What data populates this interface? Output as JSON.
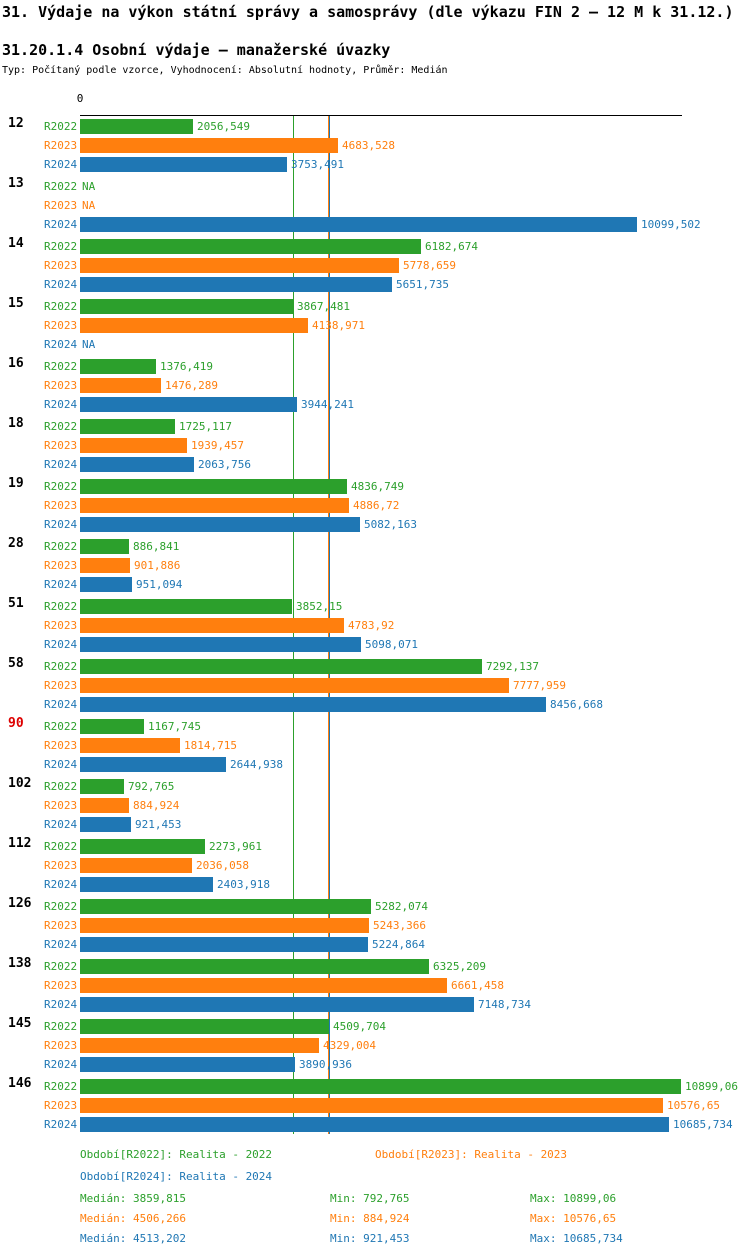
{
  "chart_data": {
    "type": "bar",
    "orientation": "horizontal",
    "title": "31. Výdaje na výkon státní správy a samosprávy (dle výkazu FIN 2 – 12 M k 31.12.)",
    "subtitle": "31.20.1.4 Osobní výdaje – manažerské úvazky",
    "meta": "Typ: Počítaný podle vzorce, Vyhodnocení: Absolutní hodnoty, Průměr: Medián",
    "axis": {
      "origin_label": "0",
      "xmax": 10899.06
    },
    "legend_position": "bottom",
    "grid": "vertical median reference lines only",
    "colors": {
      "green": "#2CA02C",
      "orange": "#FF7F0E",
      "blue": "#1F77B4",
      "red": "#DD0000",
      "black": "#000000"
    },
    "series": [
      {
        "name": "R2022",
        "color_key": "green"
      },
      {
        "name": "R2023",
        "color_key": "orange"
      },
      {
        "name": "R2024",
        "color_key": "blue"
      }
    ],
    "medians": [
      {
        "series": "R2022",
        "value": 3859.815,
        "color_key": "green"
      },
      {
        "series": "R2023",
        "value": 4506.266,
        "color_key": "orange"
      },
      {
        "series": "R2024",
        "value": 4513.202,
        "color_key": "blue"
      }
    ],
    "groups": [
      {
        "label": "12",
        "label_color": "#000000",
        "bars": [
          {
            "series": "R2022",
            "value": 2056.549,
            "display": "2056,549"
          },
          {
            "series": "R2023",
            "value": 4683.528,
            "display": "4683,528"
          },
          {
            "series": "R2024",
            "value": 3753.491,
            "display": "3753,491"
          }
        ]
      },
      {
        "label": "13",
        "label_color": "#000000",
        "bars": [
          {
            "series": "R2022",
            "value": null,
            "display": "NA"
          },
          {
            "series": "R2023",
            "value": null,
            "display": "NA"
          },
          {
            "series": "R2024",
            "value": 10099.502,
            "display": "10099,502"
          }
        ]
      },
      {
        "label": "14",
        "label_color": "#000000",
        "bars": [
          {
            "series": "R2022",
            "value": 6182.674,
            "display": "6182,674"
          },
          {
            "series": "R2023",
            "value": 5778.659,
            "display": "5778,659"
          },
          {
            "series": "R2024",
            "value": 5651.735,
            "display": "5651,735"
          }
        ]
      },
      {
        "label": "15",
        "label_color": "#000000",
        "bars": [
          {
            "series": "R2022",
            "value": 3867.481,
            "display": "3867,481"
          },
          {
            "series": "R2023",
            "value": 4138.971,
            "display": "4138,971"
          },
          {
            "series": "R2024",
            "value": null,
            "display": "NA"
          }
        ]
      },
      {
        "label": "16",
        "label_color": "#000000",
        "bars": [
          {
            "series": "R2022",
            "value": 1376.419,
            "display": "1376,419"
          },
          {
            "series": "R2023",
            "value": 1476.289,
            "display": "1476,289"
          },
          {
            "series": "R2024",
            "value": 3944.241,
            "display": "3944,241"
          }
        ]
      },
      {
        "label": "18",
        "label_color": "#000000",
        "bars": [
          {
            "series": "R2022",
            "value": 1725.117,
            "display": "1725,117"
          },
          {
            "series": "R2023",
            "value": 1939.457,
            "display": "1939,457"
          },
          {
            "series": "R2024",
            "value": 2063.756,
            "display": "2063,756"
          }
        ]
      },
      {
        "label": "19",
        "label_color": "#000000",
        "bars": [
          {
            "series": "R2022",
            "value": 4836.749,
            "display": "4836,749"
          },
          {
            "series": "R2023",
            "value": 4886.72,
            "display": "4886,72"
          },
          {
            "series": "R2024",
            "value": 5082.163,
            "display": "5082,163"
          }
        ]
      },
      {
        "label": "28",
        "label_color": "#000000",
        "bars": [
          {
            "series": "R2022",
            "value": 886.841,
            "display": "886,841"
          },
          {
            "series": "R2023",
            "value": 901.886,
            "display": "901,886"
          },
          {
            "series": "R2024",
            "value": 951.094,
            "display": "951,094"
          }
        ]
      },
      {
        "label": "51",
        "label_color": "#000000",
        "bars": [
          {
            "series": "R2022",
            "value": 3852.15,
            "display": "3852,15"
          },
          {
            "series": "R2023",
            "value": 4783.92,
            "display": "4783,92"
          },
          {
            "series": "R2024",
            "value": 5098.071,
            "display": "5098,071"
          }
        ]
      },
      {
        "label": "58",
        "label_color": "#000000",
        "bars": [
          {
            "series": "R2022",
            "value": 7292.137,
            "display": "7292,137"
          },
          {
            "series": "R2023",
            "value": 7777.959,
            "display": "7777,959"
          },
          {
            "series": "R2024",
            "value": 8456.668,
            "display": "8456,668"
          }
        ]
      },
      {
        "label": "90",
        "label_color": "#DD0000",
        "bars": [
          {
            "series": "R2022",
            "value": 1167.745,
            "display": "1167,745"
          },
          {
            "series": "R2023",
            "value": 1814.715,
            "display": "1814,715"
          },
          {
            "series": "R2024",
            "value": 2644.938,
            "display": "2644,938"
          }
        ]
      },
      {
        "label": "102",
        "label_color": "#000000",
        "bars": [
          {
            "series": "R2022",
            "value": 792.765,
            "display": "792,765"
          },
          {
            "series": "R2023",
            "value": 884.924,
            "display": "884,924"
          },
          {
            "series": "R2024",
            "value": 921.453,
            "display": "921,453"
          }
        ]
      },
      {
        "label": "112",
        "label_color": "#000000",
        "bars": [
          {
            "series": "R2022",
            "value": 2273.961,
            "display": "2273,961"
          },
          {
            "series": "R2023",
            "value": 2036.058,
            "display": "2036,058"
          },
          {
            "series": "R2024",
            "value": 2403.918,
            "display": "2403,918"
          }
        ]
      },
      {
        "label": "126",
        "label_color": "#000000",
        "bars": [
          {
            "series": "R2022",
            "value": 5282.074,
            "display": "5282,074"
          },
          {
            "series": "R2023",
            "value": 5243.366,
            "display": "5243,366"
          },
          {
            "series": "R2024",
            "value": 5224.864,
            "display": "5224,864"
          }
        ]
      },
      {
        "label": "138",
        "label_color": "#000000",
        "bars": [
          {
            "series": "R2022",
            "value": 6325.209,
            "display": "6325,209"
          },
          {
            "series": "R2023",
            "value": 6661.458,
            "display": "6661,458"
          },
          {
            "series": "R2024",
            "value": 7148.734,
            "display": "7148,734"
          }
        ]
      },
      {
        "label": "145",
        "label_color": "#000000",
        "bars": [
          {
            "series": "R2022",
            "value": 4509.704,
            "display": "4509,704"
          },
          {
            "series": "R2023",
            "value": 4329.004,
            "display": "4329,004"
          },
          {
            "series": "R2024",
            "value": 3890.936,
            "display": "3890,936"
          }
        ]
      },
      {
        "label": "146",
        "label_color": "#000000",
        "bars": [
          {
            "series": "R2022",
            "value": 10899.06,
            "display": "10899,06"
          },
          {
            "series": "R2023",
            "value": 10576.65,
            "display": "10576,65"
          },
          {
            "series": "R2024",
            "value": 10685.734,
            "display": "10685,734"
          }
        ]
      }
    ]
  },
  "legend": {
    "r2022": "Období[R2022]: Realita - 2022",
    "r2023": "Období[R2023]: Realita - 2023",
    "r2024": "Období[R2024]: Realita - 2024"
  },
  "stats": {
    "r2022": {
      "median": "Medián: 3859,815",
      "min": "Min: 792,765",
      "max": "Max: 10899,06"
    },
    "r2023": {
      "median": "Medián: 4506,266",
      "min": "Min: 884,924",
      "max": "Max: 10576,65"
    },
    "r2024": {
      "median": "Medián: 4513,202",
      "min": "Min: 921,453",
      "max": "Max: 10685,734"
    }
  }
}
